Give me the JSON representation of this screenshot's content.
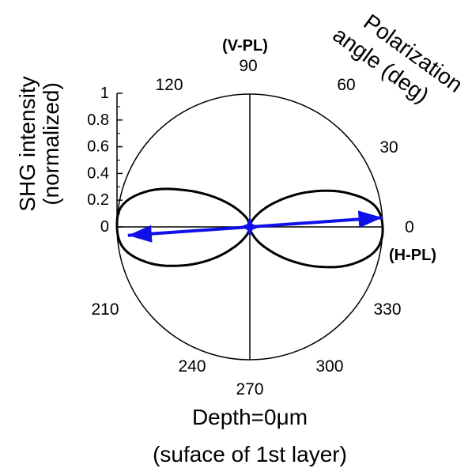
{
  "chart_data": {
    "type": "polar",
    "theta_axis": {
      "label": "Polarization angle (deg)",
      "label_lines": [
        "Polarization",
        "angle (deg)"
      ],
      "ticks": [
        0,
        30,
        60,
        90,
        120,
        210,
        240,
        270,
        300,
        330
      ]
    },
    "radial_axis": {
      "label": "SHG intensity (normalized)",
      "label_lines": [
        "SHG intensity",
        "(normalized)"
      ],
      "ticks": [
        "0",
        "0.2",
        "0.4",
        "0.6",
        "0.8",
        "1"
      ],
      "range": [
        0,
        1
      ]
    },
    "direction_labels": {
      "vertical": "(V-PL)",
      "horizontal": "(H-PL)"
    },
    "caption_lines": [
      "Depth=0μm",
      "(suface of 1st layer)"
    ],
    "series": {
      "angles": [
        0,
        10,
        20,
        30,
        40,
        50,
        60,
        70,
        80,
        90,
        100,
        110,
        120,
        130,
        140,
        150,
        160,
        170,
        180,
        190,
        200,
        210,
        220,
        230,
        240,
        250,
        260,
        270,
        280,
        290,
        300,
        310,
        320,
        330,
        340,
        350
      ],
      "values": [
        1.0,
        0.95,
        0.76,
        0.53,
        0.33,
        0.19,
        0.1,
        0.05,
        0.02,
        0.02,
        0.03,
        0.07,
        0.12,
        0.21,
        0.35,
        0.55,
        0.8,
        0.97,
        1.0,
        0.96,
        0.8,
        0.58,
        0.38,
        0.22,
        0.12,
        0.06,
        0.03,
        0.02,
        0.03,
        0.06,
        0.13,
        0.23,
        0.39,
        0.6,
        0.82,
        0.97
      ]
    },
    "arrow": {
      "angle_deg": 4,
      "magnitude": 1.0,
      "bidirectional": true,
      "color": "#1010e8"
    },
    "colors": {
      "curve": "#000000",
      "arrow": "#1010e8",
      "axes": "#000000"
    }
  }
}
